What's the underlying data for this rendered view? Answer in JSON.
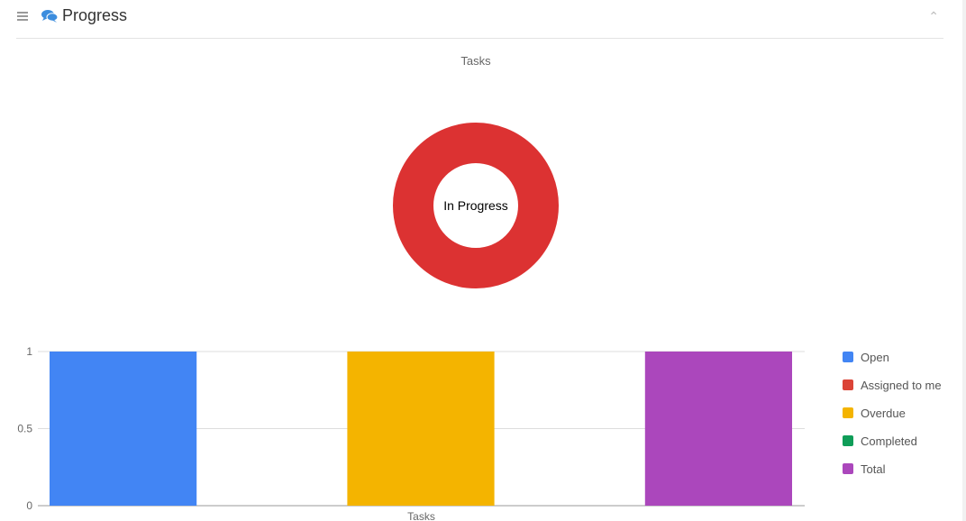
{
  "header": {
    "title": "Progress",
    "icon": "comments-icon",
    "collapse_icon": "chevron-up-icon"
  },
  "chart_data": [
    {
      "type": "pie",
      "title": "Tasks",
      "center_label": "In Progress",
      "slices": [
        {
          "name": "In Progress",
          "value": 1,
          "color": "#dc3232"
        }
      ],
      "donut": true
    },
    {
      "type": "bar",
      "categories": [
        "Tasks"
      ],
      "xlabel": "",
      "ylabel": "",
      "ylim": [
        0,
        1
      ],
      "yticks": [
        "0",
        "0.5",
        "1"
      ],
      "grid": true,
      "legend": "right",
      "series": [
        {
          "name": "Open",
          "values": [
            1
          ],
          "color": "#4285f4"
        },
        {
          "name": "Assigned to me",
          "values": [
            0
          ],
          "color": "#db4437"
        },
        {
          "name": "Overdue",
          "values": [
            1
          ],
          "color": "#f4b400"
        },
        {
          "name": "Completed",
          "values": [
            0
          ],
          "color": "#0f9d58"
        },
        {
          "name": "Total",
          "values": [
            1
          ],
          "color": "#ab47bc"
        }
      ]
    }
  ]
}
